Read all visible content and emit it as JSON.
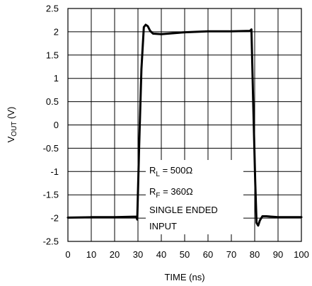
{
  "chart_data": {
    "type": "line",
    "xlabel": "TIME (ns)",
    "ylabel": {
      "main": "V",
      "sub": "OUT",
      "suffix": " (V)"
    },
    "xlim": [
      0,
      100
    ],
    "ylim": [
      -2.5,
      2.5
    ],
    "xticks": [
      "0",
      "10",
      "20",
      "30",
      "40",
      "50",
      "60",
      "70",
      "80",
      "90",
      "100"
    ],
    "yticks": [
      "2.5",
      "2",
      "1.5",
      "1",
      "0.5",
      "0",
      "-0.5",
      "-1",
      "-1.5",
      "-2",
      "-2.5"
    ],
    "grid": true,
    "series": [
      {
        "x": [
          0,
          10,
          20,
          28,
          29.3,
          29.7,
          30.5,
          31.5,
          32.5,
          33.3,
          34.2,
          35.2,
          36.5,
          40,
          50,
          60,
          70,
          78,
          78.6,
          79.3,
          80.2,
          80.8,
          81.5,
          82.2,
          83.3,
          85,
          90,
          100
        ],
        "y": [
          -1.99,
          -1.98,
          -1.98,
          -1.97,
          -1.97,
          -2.03,
          -0.5,
          1.2,
          2.1,
          2.15,
          2.12,
          2.02,
          1.96,
          1.95,
          1.99,
          2.01,
          2.01,
          2.02,
          2.05,
          0.6,
          -1.2,
          -2.1,
          -2.16,
          -2.05,
          -1.96,
          -1.96,
          -1.98,
          -1.98
        ]
      }
    ],
    "annotations": {
      "rl": {
        "main": "R",
        "sub": "L",
        "value": " = 500Ω"
      },
      "rf": {
        "main": "R",
        "sub": "F",
        "value": " = 360Ω"
      },
      "line1": "SINGLE ENDED",
      "line2": "INPUT"
    }
  }
}
